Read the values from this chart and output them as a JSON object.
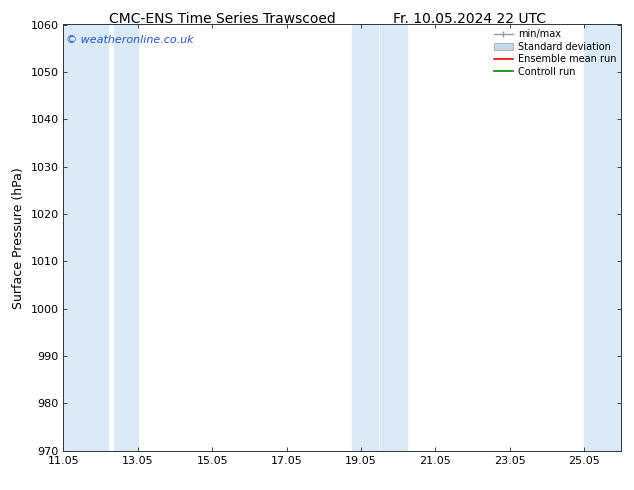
{
  "title_left": "CMC-ENS Time Series Trawscoed",
  "title_right": "Fr. 10.05.2024 22 UTC",
  "ylabel": "Surface Pressure (hPa)",
  "ylim": [
    970,
    1060
  ],
  "xlim": [
    11.05,
    26.05
  ],
  "yticks": [
    970,
    980,
    990,
    1000,
    1010,
    1020,
    1030,
    1040,
    1050,
    1060
  ],
  "xtick_labels": [
    "11.05",
    "13.05",
    "15.05",
    "17.05",
    "19.05",
    "21.05",
    "23.05",
    "25.05"
  ],
  "xtick_positions": [
    11.05,
    13.05,
    15.05,
    17.05,
    19.05,
    21.05,
    23.05,
    25.05
  ],
  "bg_color": "#ffffff",
  "plot_bg_color": "#ffffff",
  "shaded_bands": [
    {
      "xmin": 11.05,
      "xmax": 12.25,
      "color": "#daeaf7"
    },
    {
      "xmin": 12.4,
      "xmax": 13.05,
      "color": "#daeaf7"
    },
    {
      "xmin": 18.8,
      "xmax": 19.5,
      "color": "#daeaf7"
    },
    {
      "xmin": 19.55,
      "xmax": 20.3,
      "color": "#daeaf7"
    },
    {
      "xmin": 25.05,
      "xmax": 26.05,
      "color": "#daeaf7"
    }
  ],
  "watermark_text": "© weatheronline.co.uk",
  "watermark_color": "#2255cc",
  "legend_items": [
    {
      "label": "min/max",
      "color": "#aaaaaa",
      "style": "errorbar"
    },
    {
      "label": "Standard deviation",
      "color": "#c8daea",
      "style": "box"
    },
    {
      "label": "Ensemble mean run",
      "color": "#ff0000",
      "style": "line"
    },
    {
      "label": "Controll run",
      "color": "#008800",
      "style": "line"
    }
  ],
  "title_fontsize": 10,
  "tick_fontsize": 8,
  "ylabel_fontsize": 9,
  "legend_fontsize": 7,
  "watermark_fontsize": 8
}
